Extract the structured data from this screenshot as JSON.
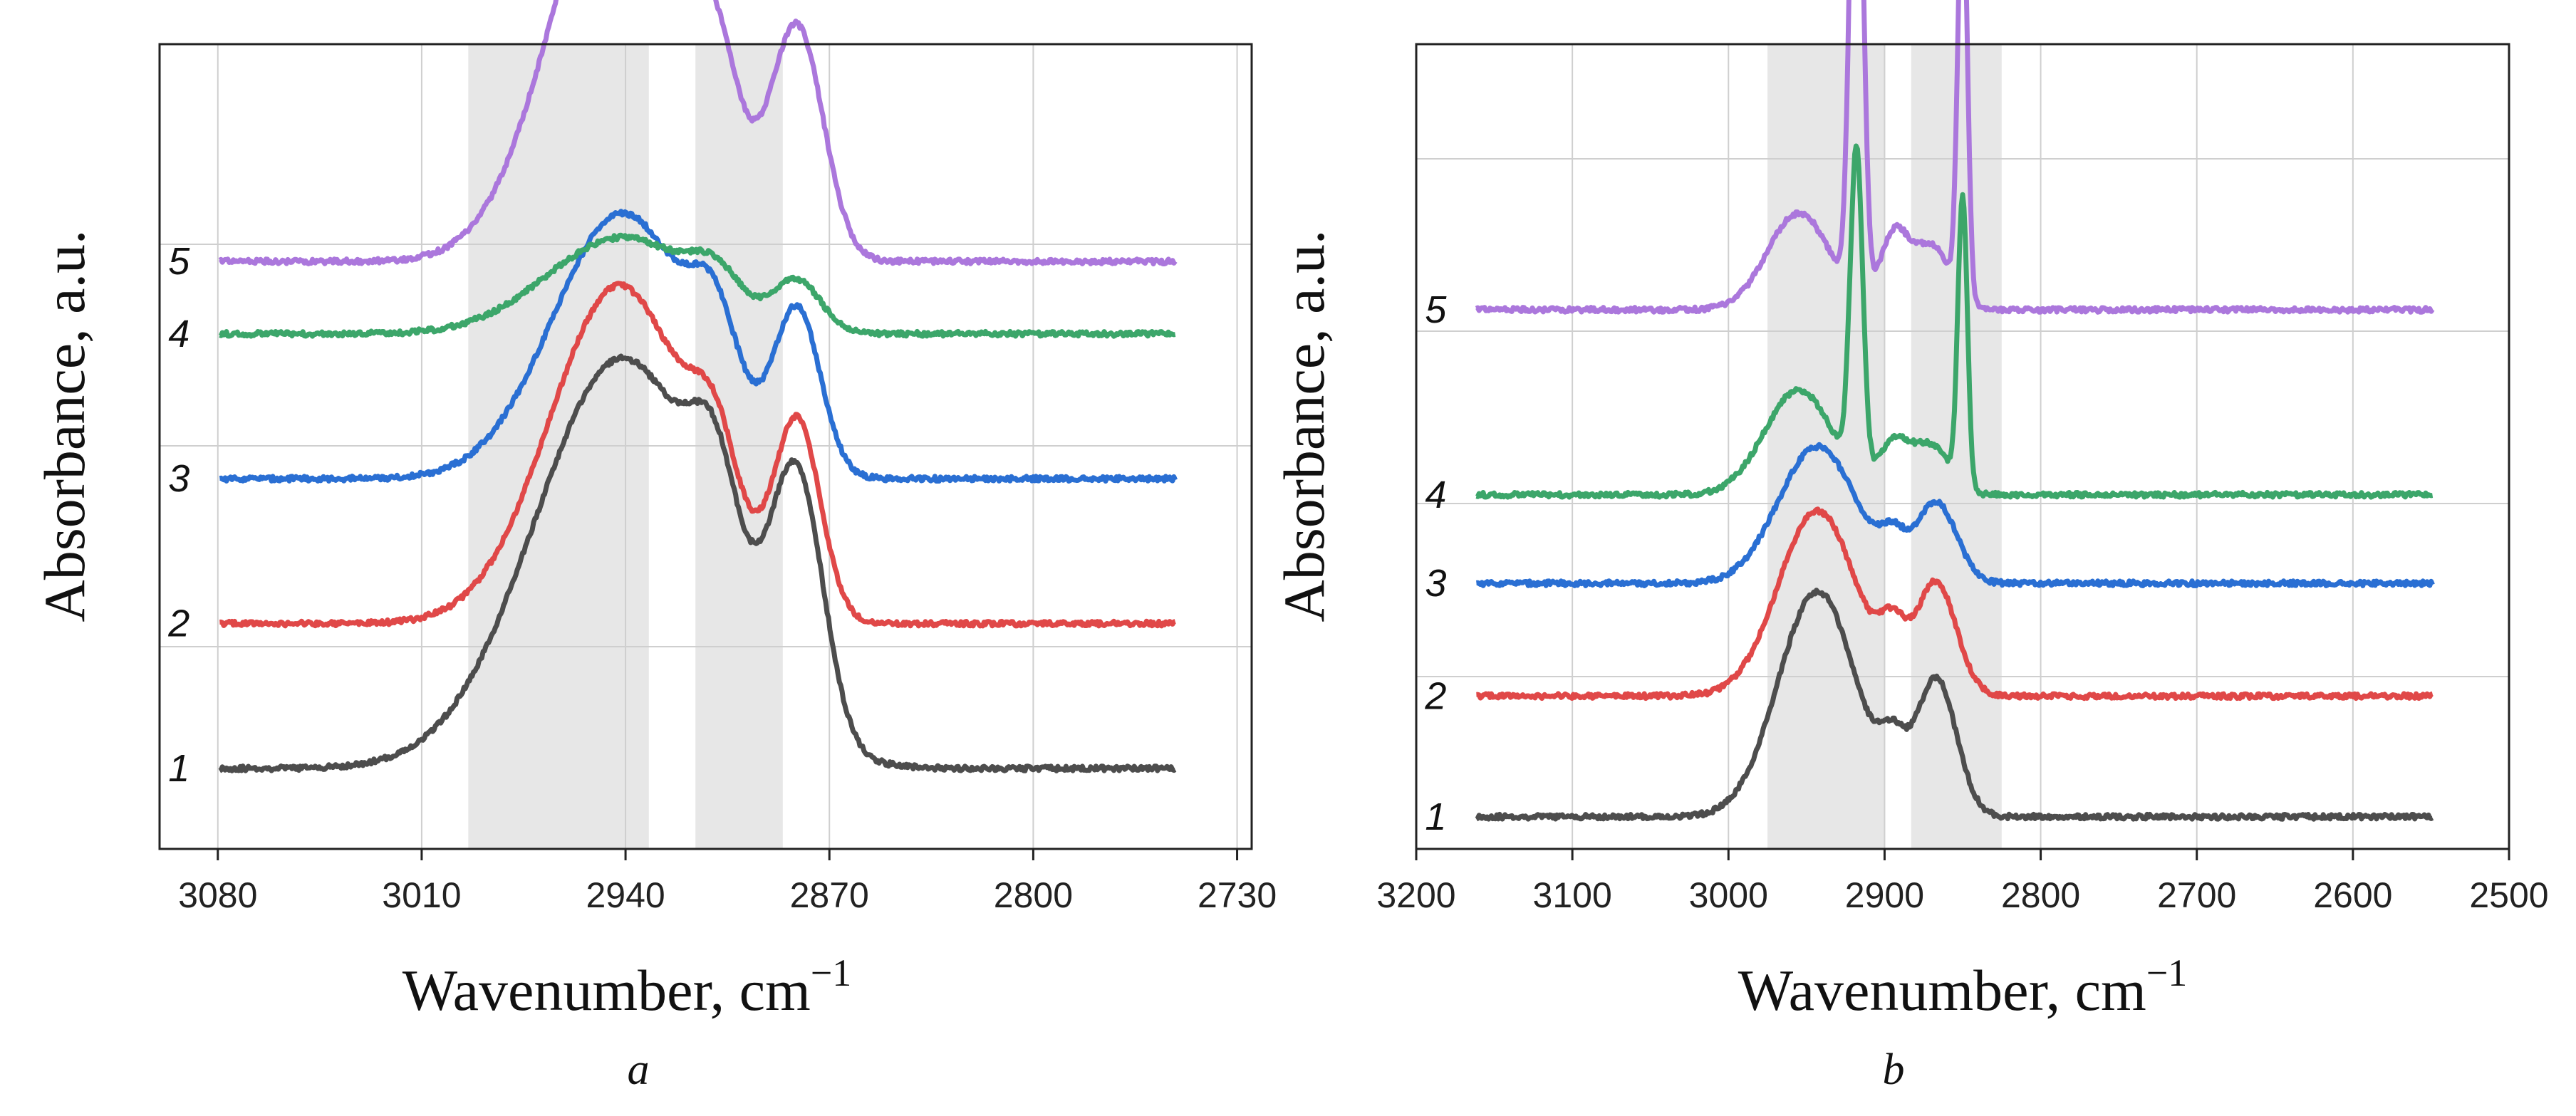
{
  "chart_data": [
    {
      "type": "line",
      "panel_label": "a",
      "xlabel": "Wavenumber, cm",
      "xlabel_superscript": "−1",
      "ylabel": "Absorbance, a.u.",
      "x_reversed": true,
      "xlim": [
        3100,
        2725
      ],
      "x_tick_values": [
        3080,
        3010,
        2940,
        2870,
        2800,
        2730
      ],
      "x_tick_labels": [
        "3080",
        "3010",
        "2940",
        "2870",
        "2800",
        "2730"
      ],
      "grid": true,
      "shaded_regions": [
        [
          2994,
          2932
        ],
        [
          2916,
          2886
        ]
      ],
      "series": [
        {
          "name": "1",
          "color": "#4d4d4d",
          "baseline": 0.1,
          "peaks": [
            [
              2941,
              0.51,
              30
            ],
            [
              2909,
              0.14,
              8
            ],
            [
              2881,
              0.31,
              9
            ]
          ]
        },
        {
          "name": "2",
          "color": "#e04848",
          "baseline": 0.28,
          "peaks": [
            [
              2942,
              0.42,
              24
            ],
            [
              2909,
              0.12,
              8
            ],
            [
              2881,
              0.24,
              8
            ]
          ]
        },
        {
          "name": "3",
          "color": "#2a6fd3",
          "baseline": 0.46,
          "peaks": [
            [
              2941,
              0.33,
              24
            ],
            [
              2909,
              0.11,
              8
            ],
            [
              2881,
              0.2,
              8
            ]
          ]
        },
        {
          "name": "4",
          "color": "#3ca66a",
          "baseline": 0.64,
          "peaks": [
            [
              2941,
              0.12,
              26
            ],
            [
              2909,
              0.04,
              8
            ],
            [
              2881,
              0.06,
              8
            ]
          ]
        },
        {
          "name": "5",
          "color": "#ab77dc",
          "baseline": 0.73,
          "peaks": [
            [
              2942,
              0.51,
              23
            ],
            [
              2909,
              0.14,
              8
            ],
            [
              2881,
              0.28,
              9
            ]
          ]
        }
      ]
    },
    {
      "type": "line",
      "panel_label": "b",
      "xlabel": "Wavenumber, cm",
      "xlabel_superscript": "−1",
      "ylabel": "Absorbance, a.u.",
      "x_reversed": true,
      "xlim": [
        3200,
        2500
      ],
      "x_tick_values": [
        3200,
        3100,
        3000,
        2900,
        2800,
        2700,
        2600,
        2500
      ],
      "x_tick_labels": [
        "3200",
        "3100",
        "3000",
        "2900",
        "2800",
        "2700",
        "2600",
        "2500"
      ],
      "grid": true,
      "shaded_regions": [
        [
          2975,
          2900
        ],
        [
          2883,
          2825
        ]
      ],
      "series": [
        {
          "name": "1",
          "color": "#4d4d4d",
          "baseline": 0.04,
          "peaks": [
            [
              2943,
              0.28,
              25
            ],
            [
              2895,
              0.06,
              8
            ],
            [
              2867,
              0.17,
              13
            ]
          ]
        },
        {
          "name": "2",
          "color": "#e04848",
          "baseline": 0.19,
          "peaks": [
            [
              2943,
              0.23,
              25
            ],
            [
              2895,
              0.06,
              8
            ],
            [
              2867,
              0.14,
              13
            ]
          ]
        },
        {
          "name": "3",
          "color": "#2a6fd3",
          "baseline": 0.33,
          "peaks": [
            [
              2943,
              0.17,
              25
            ],
            [
              2895,
              0.04,
              8
            ],
            [
              2867,
              0.1,
              13
            ]
          ]
        },
        {
          "name": "4",
          "color": "#3ca66a",
          "baseline": 0.44,
          "peaks": [
            [
              2955,
              0.13,
              22
            ],
            [
              2918,
              0.4,
              4
            ],
            [
              2894,
              0.06,
              10
            ],
            [
              2870,
              0.06,
              12
            ],
            [
              2850,
              0.36,
              3
            ]
          ]
        },
        {
          "name": "5",
          "color": "#ab77dc",
          "baseline": 0.67,
          "peaks": [
            [
              2955,
              0.12,
              20
            ],
            [
              2918,
              0.73,
              4
            ],
            [
              2894,
              0.09,
              9
            ],
            [
              2870,
              0.08,
              12
            ],
            [
              2850,
              0.52,
              3
            ]
          ]
        }
      ]
    }
  ]
}
